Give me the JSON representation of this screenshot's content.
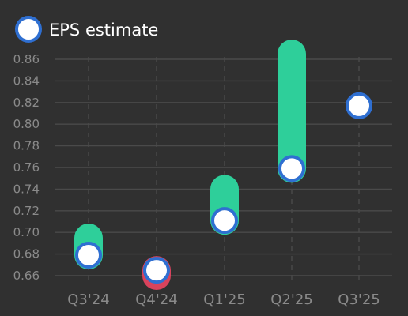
{
  "chart_data": {
    "type": "scatter",
    "categories": [
      "Q3'24",
      "Q4'24",
      "Q1'25",
      "Q2'25",
      "Q3'25"
    ],
    "series": [
      {
        "name": "EPS estimate",
        "values": [
          0.679,
          0.665,
          0.711,
          0.759,
          0.817
        ]
      }
    ],
    "actuals": [
      0.695,
      0.66,
      0.74,
      0.865,
      null
    ],
    "yticks": [
      "0.66",
      "0.68",
      "0.70",
      "0.72",
      "0.74",
      "0.76",
      "0.78",
      "0.80",
      "0.82",
      "0.84",
      "0.86"
    ],
    "ylim": [
      0.66,
      0.87
    ],
    "grid": true,
    "legend_position": "top-left",
    "colors": {
      "background": "#303030",
      "beat": "#2ecf9a",
      "miss": "#d8435c",
      "estimate_fill": "#ffffff",
      "estimate_stroke": "#2f6fd1",
      "grid": "#4a4a4a",
      "tick_text": "#8a8a8a",
      "legend_text": "#ffffff"
    }
  }
}
